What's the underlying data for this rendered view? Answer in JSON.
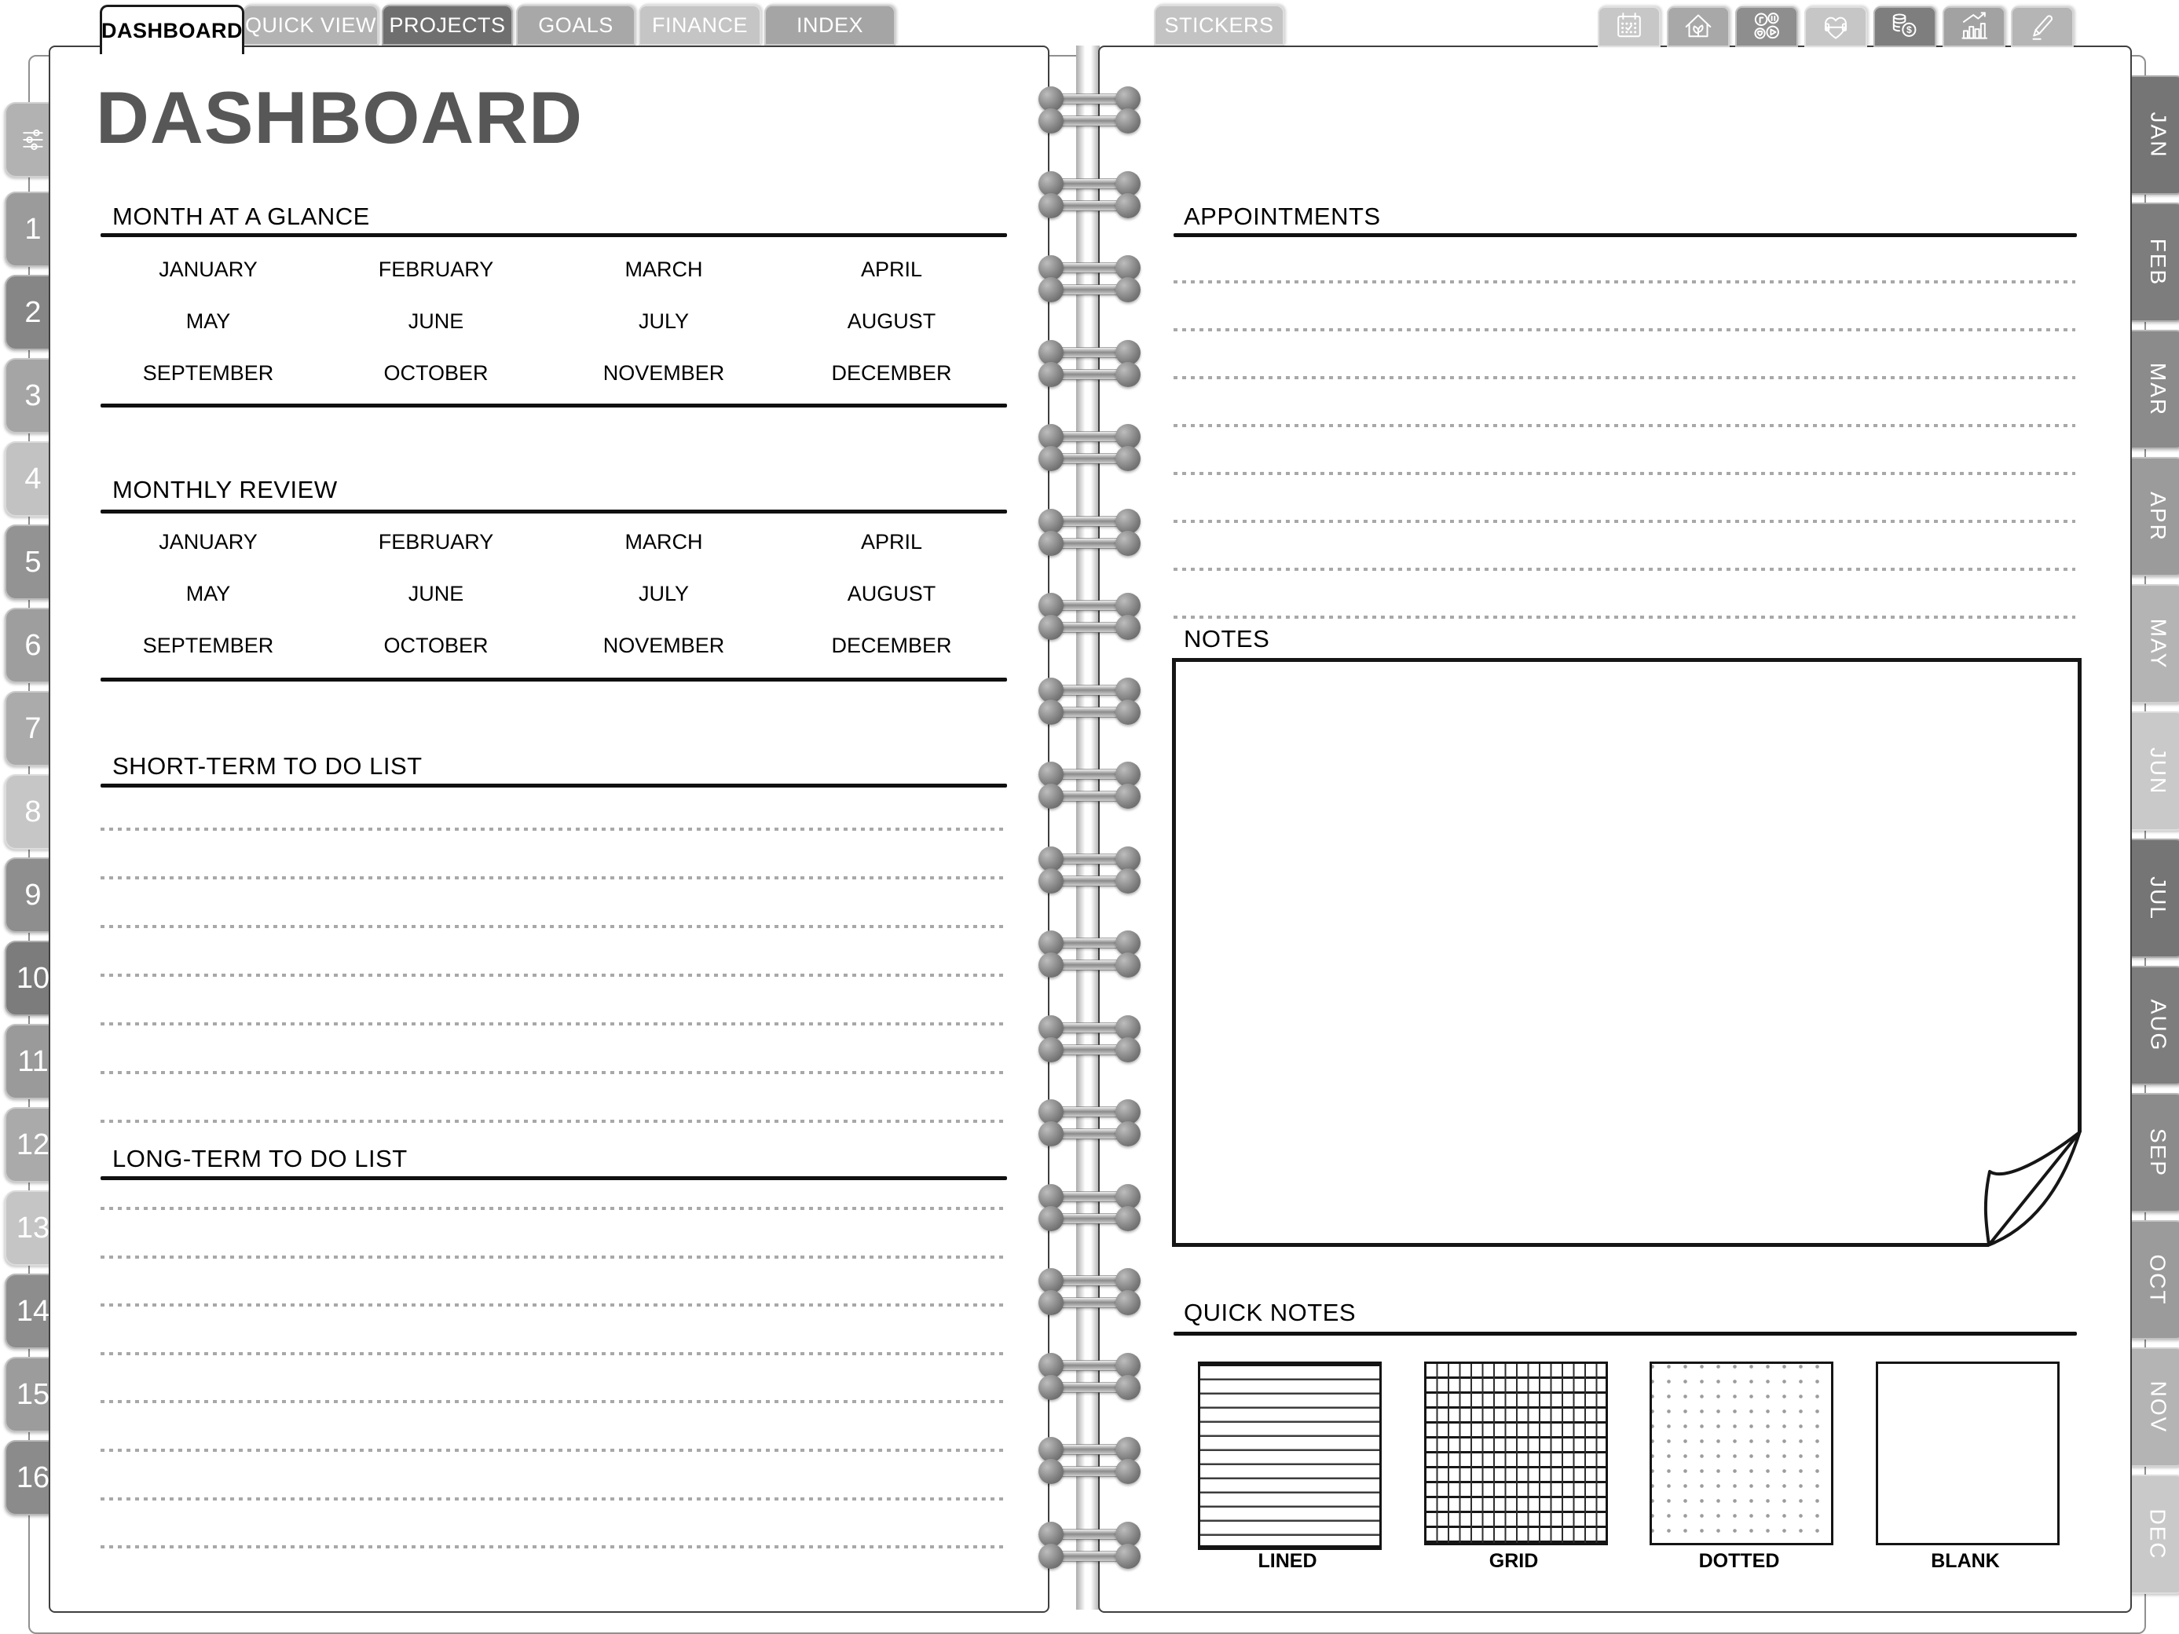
{
  "top_tabs": [
    {
      "label": "DASHBOARD",
      "active": true,
      "color": "#ffffff"
    },
    {
      "label": "QUICK VIEW",
      "active": false,
      "color": "#b3b3b3"
    },
    {
      "label": "PROJECTS",
      "active": false,
      "color": "#6f6f6f"
    },
    {
      "label": "GOALS",
      "active": false,
      "color": "#a8a8a8"
    },
    {
      "label": "FINANCE",
      "active": false,
      "color": "#c5c5c5"
    },
    {
      "label": "INDEX",
      "active": false,
      "color": "#a5a5a5"
    }
  ],
  "stickers_tab": {
    "label": "STICKERS",
    "color": "#c3c3c3"
  },
  "icon_tabs": [
    {
      "name": "calendar-icon",
      "color": "#c7c7c7"
    },
    {
      "name": "home-icon",
      "color": "#a8a8a8"
    },
    {
      "name": "hobbies-icon",
      "color": "#8e8e8e"
    },
    {
      "name": "fitness-icon",
      "color": "#c6c6c6"
    },
    {
      "name": "finance-icon",
      "color": "#7e7e7e"
    },
    {
      "name": "stats-icon",
      "color": "#a2a2a2"
    },
    {
      "name": "pen-icon",
      "color": "#b5b5b5"
    }
  ],
  "side_tabs": {
    "settings": {
      "name": "settings-icon",
      "color": "#b2b2b2"
    },
    "numbers": [
      {
        "label": "1",
        "color": "#9b9b9b"
      },
      {
        "label": "2",
        "color": "#868686"
      },
      {
        "label": "3",
        "color": "#a5a5a5"
      },
      {
        "label": "4",
        "color": "#c2c2c2"
      },
      {
        "label": "5",
        "color": "#939393"
      },
      {
        "label": "6",
        "color": "#9e9e9e"
      },
      {
        "label": "7",
        "color": "#ababab"
      },
      {
        "label": "8",
        "color": "#c6c6c6"
      },
      {
        "label": "9",
        "color": "#8e8e8e"
      },
      {
        "label": "10",
        "color": "#7c7c7c"
      },
      {
        "label": "11",
        "color": "#9a9a9a"
      },
      {
        "label": "12",
        "color": "#aaaaaa"
      },
      {
        "label": "13",
        "color": "#c5c5c5"
      },
      {
        "label": "14",
        "color": "#8d8d8d"
      },
      {
        "label": "15",
        "color": "#9c9c9c"
      },
      {
        "label": "16",
        "color": "#8b8b8b"
      }
    ]
  },
  "month_tabs": [
    {
      "label": "JAN",
      "color": "#757575"
    },
    {
      "label": "FEB",
      "color": "#7d7d7d"
    },
    {
      "label": "MAR",
      "color": "#8b8b8b"
    },
    {
      "label": "APR",
      "color": "#9b9b9b"
    },
    {
      "label": "MAY",
      "color": "#b4b4b4"
    },
    {
      "label": "JUN",
      "color": "#c9c9c9"
    },
    {
      "label": "JUL",
      "color": "#757575"
    },
    {
      "label": "AUG",
      "color": "#7d7d7d"
    },
    {
      "label": "SEP",
      "color": "#8b8b8b"
    },
    {
      "label": "OCT",
      "color": "#9b9b9b"
    },
    {
      "label": "NOV",
      "color": "#b4b4b4"
    },
    {
      "label": "DEC",
      "color": "#c9c9c9"
    }
  ],
  "left_page": {
    "title": "DASHBOARD",
    "month_at_a_glance": {
      "title": "MONTH AT A GLANCE",
      "months": [
        "JANUARY",
        "FEBRUARY",
        "MARCH",
        "APRIL",
        "MAY",
        "JUNE",
        "JULY",
        "AUGUST",
        "SEPTEMBER",
        "OCTOBER",
        "NOVEMBER",
        "DECEMBER"
      ]
    },
    "monthly_review": {
      "title": "MONTHLY REVIEW",
      "months": [
        "JANUARY",
        "FEBRUARY",
        "MARCH",
        "APRIL",
        "MAY",
        "JUNE",
        "JULY",
        "AUGUST",
        "SEPTEMBER",
        "OCTOBER",
        "NOVEMBER",
        "DECEMBER"
      ]
    },
    "short_term": {
      "title": "SHORT-TERM TO DO LIST",
      "lines": 7
    },
    "long_term": {
      "title": "LONG-TERM TO DO LIST",
      "lines": 8
    }
  },
  "right_page": {
    "appointments": {
      "title": "APPOINTMENTS",
      "lines": 8
    },
    "notes": {
      "title": "NOTES"
    },
    "quick_notes": {
      "title": "QUICK NOTES",
      "styles": [
        "LINED",
        "GRID",
        "DOTTED",
        "BLANK"
      ]
    }
  }
}
